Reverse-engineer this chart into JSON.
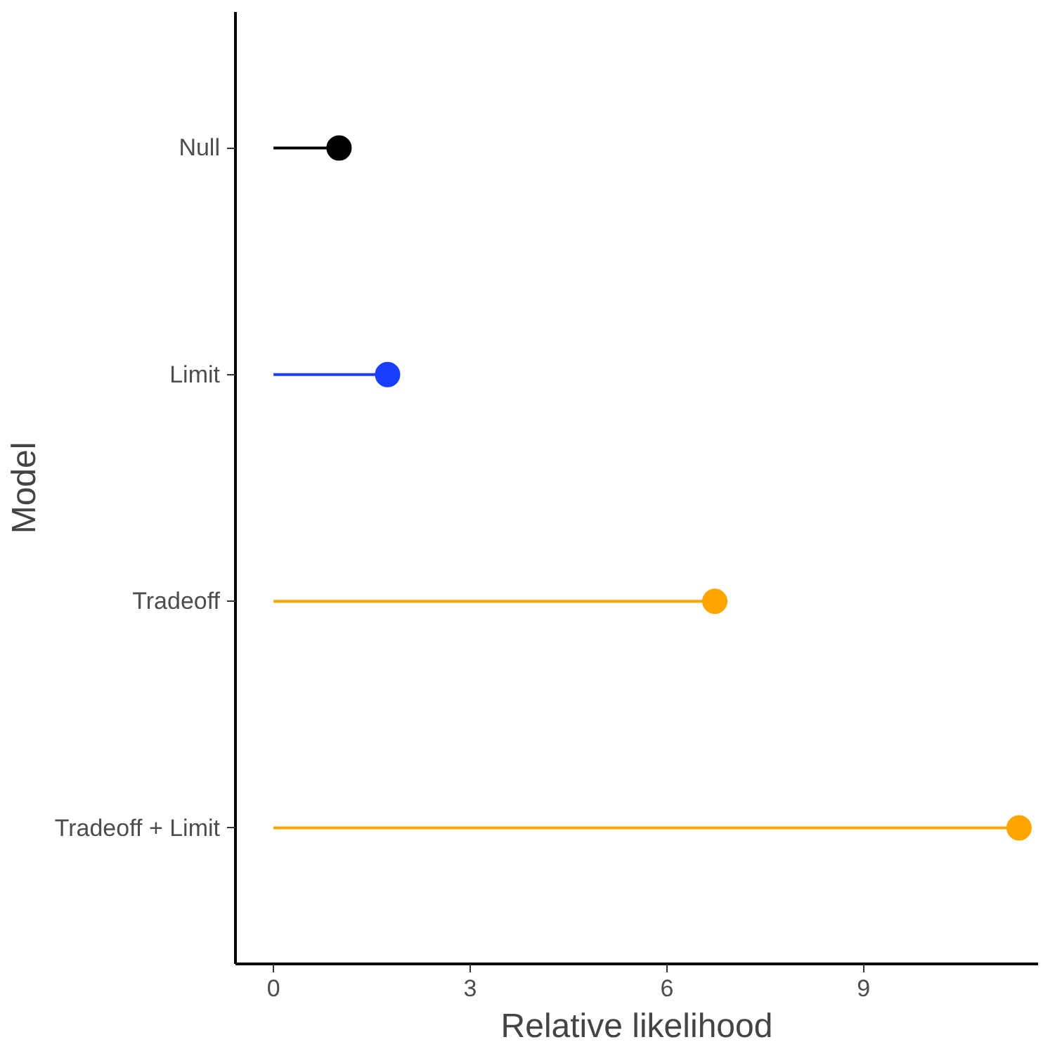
{
  "chart_data": {
    "type": "lollipop",
    "orientation": "horizontal",
    "xlabel": "Relative likelihood",
    "ylabel": "Model",
    "categories": [
      "Null",
      "Limit",
      "Tradeoff",
      "Tradeoff + Limit"
    ],
    "values": [
      1.0,
      1.74,
      6.73,
      11.37
    ],
    "colors": [
      "#000000",
      "#1a3dff",
      "#ffa500",
      "#ffa500"
    ],
    "xlim": [
      -0.58,
      11.66
    ],
    "xticks": [
      0,
      3,
      6,
      9
    ],
    "grid": false,
    "marker": "circle"
  }
}
